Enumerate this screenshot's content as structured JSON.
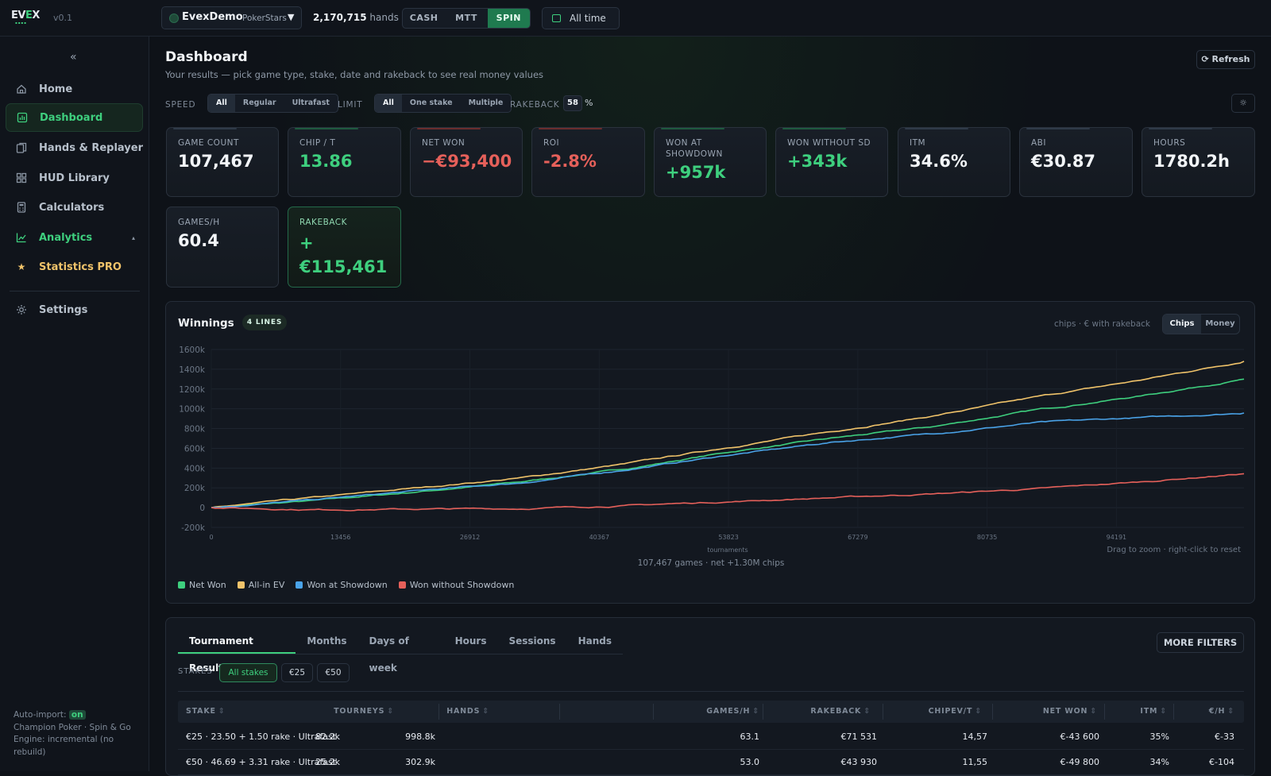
{
  "topbar": {
    "logo": "EVEX",
    "version": "v0.1",
    "account_name": "EvexDemo",
    "account_room": "PokerStars",
    "hands_count": "2,170,715",
    "hands_label": "hands",
    "game_types": [
      "CASH",
      "MTT",
      "SPIN"
    ],
    "active_game_type": "SPIN",
    "time_range": "All time"
  },
  "sidebar": {
    "collapse": "«",
    "items": [
      {
        "label": "Home",
        "icon": "home-icon"
      },
      {
        "label": "Dashboard",
        "icon": "dashboard-icon",
        "active": true
      },
      {
        "label": "Hands & Replayer",
        "icon": "cards-icon"
      },
      {
        "label": "HUD Library",
        "icon": "layout-icon"
      },
      {
        "label": "Calculators",
        "icon": "calculator-icon"
      },
      {
        "label": "Analytics",
        "icon": "chart-line-icon",
        "expand": "▴"
      },
      {
        "label": "Statistics PRO",
        "icon": "star-icon"
      },
      {
        "label": "Settings",
        "icon": "gear-icon"
      }
    ],
    "footer": {
      "auto_import_label": "Auto-import:",
      "auto_import_status": "on",
      "line2": "Champion Poker · Spin & Go",
      "line3": "Engine: incremental (no rebuild)"
    }
  },
  "page": {
    "title": "Dashboard",
    "subtitle": "Your results — pick game type, stake, date and rakeback to see real money values",
    "refresh": "⟳ Refresh"
  },
  "filters": {
    "speed_label": "SPEED",
    "speed_options": [
      "All",
      "Regular",
      "Ultrafast"
    ],
    "limit_label": "LIMIT",
    "limit_options": [
      "All",
      "One stake",
      "Multiple"
    ],
    "rakeback_label": "RAKEBACK",
    "rakeback_value": "58",
    "rakeback_unit": "%"
  },
  "stats": [
    {
      "label": "Game count",
      "value": "107,467",
      "tone": "neutral"
    },
    {
      "label": "Chip / T",
      "value": "13.86",
      "tone": "green"
    },
    {
      "label": "Net won",
      "value": "−€93,400",
      "tone": "red"
    },
    {
      "label": "ROI",
      "value": "-2.8%",
      "tone": "red"
    },
    {
      "label": "Won at showdown",
      "value": "+957k",
      "tone": "green"
    },
    {
      "label": "Won without SD",
      "value": "+343k",
      "tone": "green"
    },
    {
      "label": "ITM",
      "value": "34.6%",
      "tone": "neutral"
    },
    {
      "label": "ABI",
      "value": "€30.87",
      "tone": "neutral"
    },
    {
      "label": "Hours",
      "value": "1780.2h",
      "tone": "neutral"
    },
    {
      "label": "Games/h",
      "value": "60.4",
      "tone": "neutral"
    },
    {
      "label": "Rakeback",
      "value": "+ €115,461",
      "tone": "green",
      "highlight": true
    }
  ],
  "winnings": {
    "title": "Winnings",
    "lines_badge": "4 LINES",
    "units_hint": "chips · € with rakeback",
    "mode_options": [
      "Chips",
      "Money"
    ],
    "active_mode": "Chips",
    "summary": "107,467 games · net +1.30M chips",
    "zoom_hint": "Drag to zoom · right-click to reset"
  },
  "chart_data": {
    "type": "line",
    "xlabel": "tournaments",
    "ylabel": "",
    "x_ticks": [
      0,
      13456,
      26912,
      40367,
      53823,
      67279,
      80735,
      94191
    ],
    "y_ticks": [
      "1600k",
      "1400k",
      "1200k",
      "1000k",
      "800k",
      "600k",
      "400k",
      "200k",
      "0",
      "-200k"
    ],
    "ylim": [
      -200000,
      1600000
    ],
    "xlim": [
      0,
      107467
    ],
    "grid": true,
    "legend_position": "bottom-left",
    "x": [
      0,
      10747,
      21493,
      32240,
      42987,
      53734,
      64480,
      75227,
      85974,
      96720,
      107467
    ],
    "series": [
      {
        "name": "Net Won",
        "color": "#3ecf7e",
        "values": [
          0,
          70000,
          160000,
          260000,
          390000,
          560000,
          700000,
          820000,
          990000,
          1130000,
          1300000
        ]
      },
      {
        "name": "All-in EV",
        "color": "#f0c36a",
        "values": [
          0,
          100000,
          200000,
          300000,
          440000,
          610000,
          770000,
          930000,
          1120000,
          1290000,
          1480000
        ]
      },
      {
        "name": "Won at Showdown",
        "color": "#4aa3e8",
        "values": [
          0,
          80000,
          170000,
          250000,
          380000,
          530000,
          660000,
          750000,
          860000,
          910000,
          957000
        ]
      },
      {
        "name": "Won without Showdown",
        "color": "#e5605a",
        "values": [
          0,
          -20000,
          -15000,
          -10000,
          20000,
          60000,
          100000,
          140000,
          190000,
          260000,
          343000
        ]
      }
    ]
  },
  "results": {
    "tabs": [
      "Tournament Results",
      "Months",
      "Days of week",
      "Hours",
      "Sessions",
      "Hands"
    ],
    "active_tab": "Tournament Results",
    "more_filters": "MORE FILTERS",
    "stakes_label": "STAKES",
    "stake_chips": [
      "All stakes",
      "€25",
      "€50"
    ],
    "columns": [
      "STAKE",
      "TOURNEYS",
      "HANDS",
      "GAMES/H",
      "RAKEBACK",
      "CHIPEV/T",
      "NET WON",
      "ITM",
      "€/H"
    ],
    "sort_glyph": "⇕",
    "rows": [
      [
        "€25 · 23.50 + 1.50 rake · Ultrafast",
        "82.2k",
        "998.8k",
        "63.1",
        "€71 531",
        "14,57",
        "€-43 600",
        "35%",
        "€-33"
      ],
      [
        "€50 · 46.69 + 3.31 rake · Ultrafast",
        "25.2k",
        "302.9k",
        "53.0",
        "€43 930",
        "11,55",
        "€-49 800",
        "34%",
        "€-104"
      ]
    ]
  }
}
